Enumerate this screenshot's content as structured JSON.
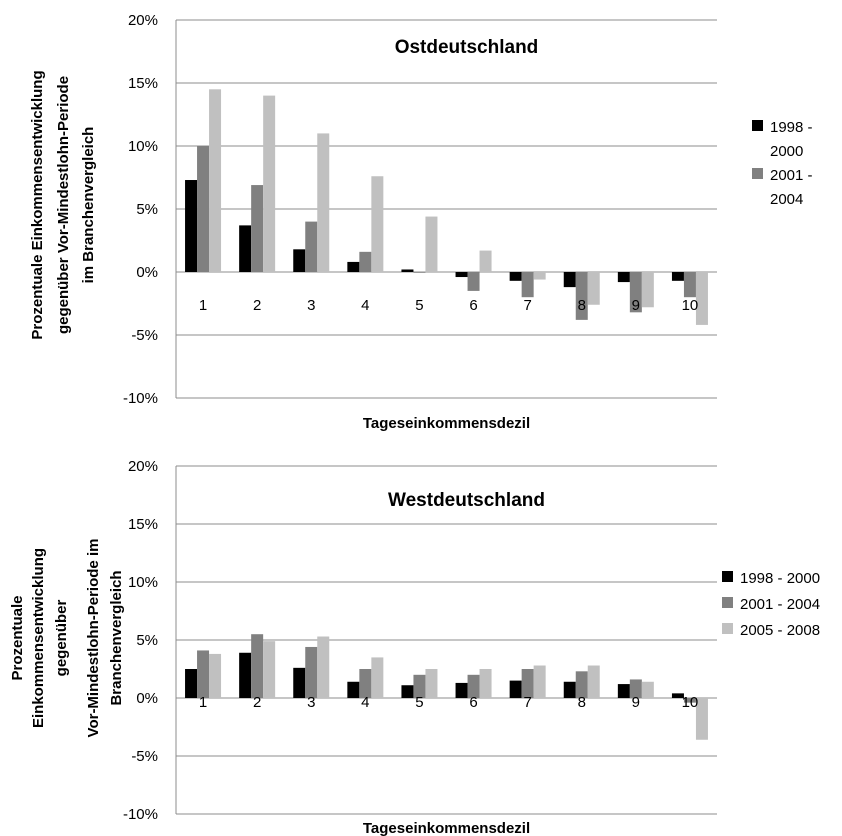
{
  "chart_data": [
    {
      "type": "bar",
      "title": "Ostdeutschland",
      "xlabel": "Tageseinkommensdezil",
      "ylabel_lines": [
        "Prozentuale Einkommensentwicklung",
        "gegenüber Vor-Mindestlohn-Periode",
        "im Branchenvergleich"
      ],
      "categories": [
        "1",
        "2",
        "3",
        "4",
        "5",
        "6",
        "7",
        "8",
        "9",
        "10"
      ],
      "yticks": [
        "20%",
        "15%",
        "10%",
        "5%",
        "0%",
        "-5%",
        "-10%"
      ],
      "ylim": [
        -10,
        20
      ],
      "legend_position": "right",
      "series": [
        {
          "name_lines": [
            "1998 -",
            "2000"
          ],
          "color": "#000000",
          "values": [
            7.3,
            3.7,
            1.8,
            0.8,
            0.2,
            -0.4,
            -0.7,
            -1.2,
            -0.8,
            -0.7
          ]
        },
        {
          "name_lines": [
            "2001 -",
            "2004"
          ],
          "color": "#808080",
          "values": [
            10.0,
            6.9,
            4.0,
            1.6,
            0.0,
            -1.5,
            -2.0,
            -3.8,
            -3.2,
            -2.0
          ]
        },
        {
          "name_lines": [],
          "color": "#c0c0c0",
          "values": [
            14.5,
            14.0,
            11.0,
            7.6,
            4.4,
            1.7,
            -0.6,
            -2.6,
            -2.8,
            -4.2
          ]
        }
      ]
    },
    {
      "type": "bar",
      "title": "Westdeutschland",
      "xlabel": "Tageseinkommensdezil",
      "ylabel_lines": [
        "Prozentuale",
        "Einkommensentwicklung",
        "gegenüber",
        "Vor-Mindestlohn-Periode im",
        "Branchenvergleich"
      ],
      "categories": [
        "1",
        "2",
        "3",
        "4",
        "5",
        "6",
        "7",
        "8",
        "9",
        "10"
      ],
      "yticks": [
        "20%",
        "15%",
        "10%",
        "5%",
        "0%",
        "-5%",
        "-10%"
      ],
      "ylim": [
        -10,
        20
      ],
      "legend_position": "right",
      "series": [
        {
          "name_lines": [
            "1998 - 2000"
          ],
          "color": "#000000",
          "values": [
            2.5,
            3.9,
            2.6,
            1.4,
            1.1,
            1.3,
            1.5,
            1.4,
            1.2,
            0.4
          ]
        },
        {
          "name_lines": [
            "2001 - 2004"
          ],
          "color": "#808080",
          "values": [
            4.1,
            5.5,
            4.4,
            2.5,
            2.0,
            2.0,
            2.5,
            2.3,
            1.6,
            -0.4
          ]
        },
        {
          "name_lines": [
            "2005 - 2008"
          ],
          "color": "#c0c0c0",
          "values": [
            3.8,
            4.9,
            5.3,
            3.5,
            2.5,
            2.5,
            2.8,
            2.8,
            1.4,
            -3.6
          ]
        }
      ]
    }
  ]
}
